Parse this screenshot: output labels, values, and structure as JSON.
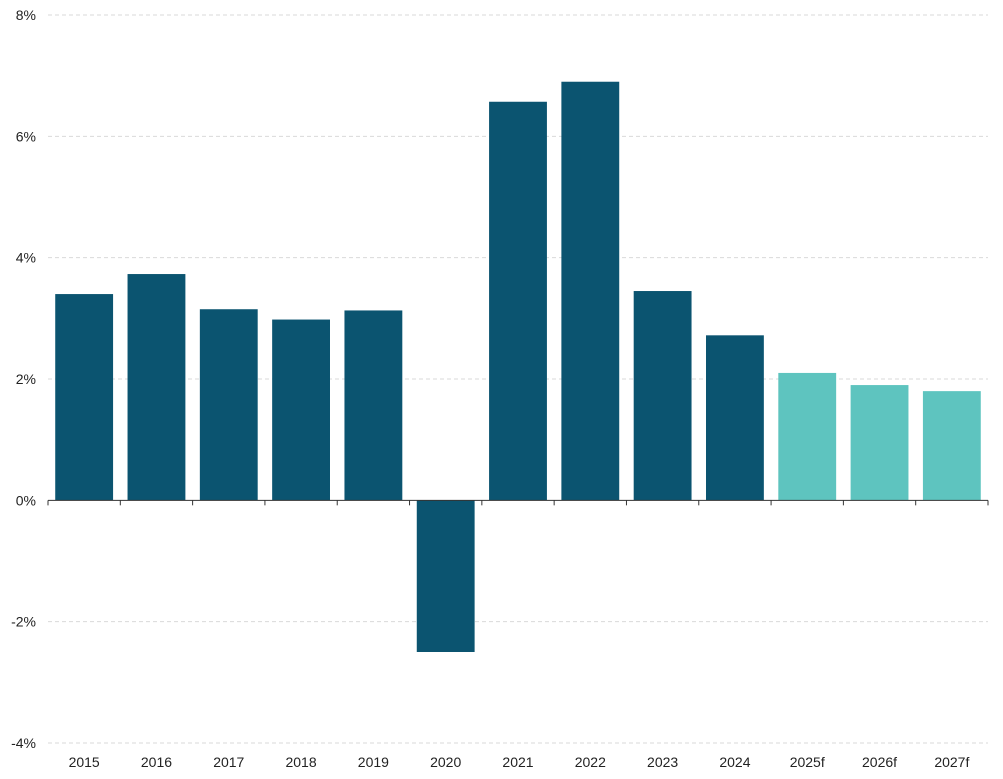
{
  "chart_data": {
    "type": "bar",
    "title": "",
    "xlabel": "",
    "ylabel": "",
    "categories": [
      "2015",
      "2016",
      "2017",
      "2018",
      "2019",
      "2020",
      "2021",
      "2022",
      "2023",
      "2024",
      "2025f",
      "2026f",
      "2027f"
    ],
    "values": [
      3.4,
      3.73,
      3.15,
      2.98,
      3.13,
      -2.5,
      6.57,
      6.9,
      3.45,
      2.72,
      2.1,
      1.9,
      1.8
    ],
    "forecast": [
      false,
      false,
      false,
      false,
      false,
      false,
      false,
      false,
      false,
      false,
      true,
      true,
      true
    ],
    "ylim": [
      -4,
      8
    ],
    "yticks": [
      -4,
      -2,
      0,
      2,
      4,
      6,
      8
    ],
    "ytick_labels": [
      "-4%",
      "-2%",
      "0%",
      "2%",
      "4%",
      "6%",
      "8%"
    ],
    "grid": true,
    "legend": "none",
    "colors": {
      "actual": "#0b5470",
      "forecast": "#5ec4bf",
      "grid": "#d9d9d9",
      "axis": "#333333"
    }
  }
}
